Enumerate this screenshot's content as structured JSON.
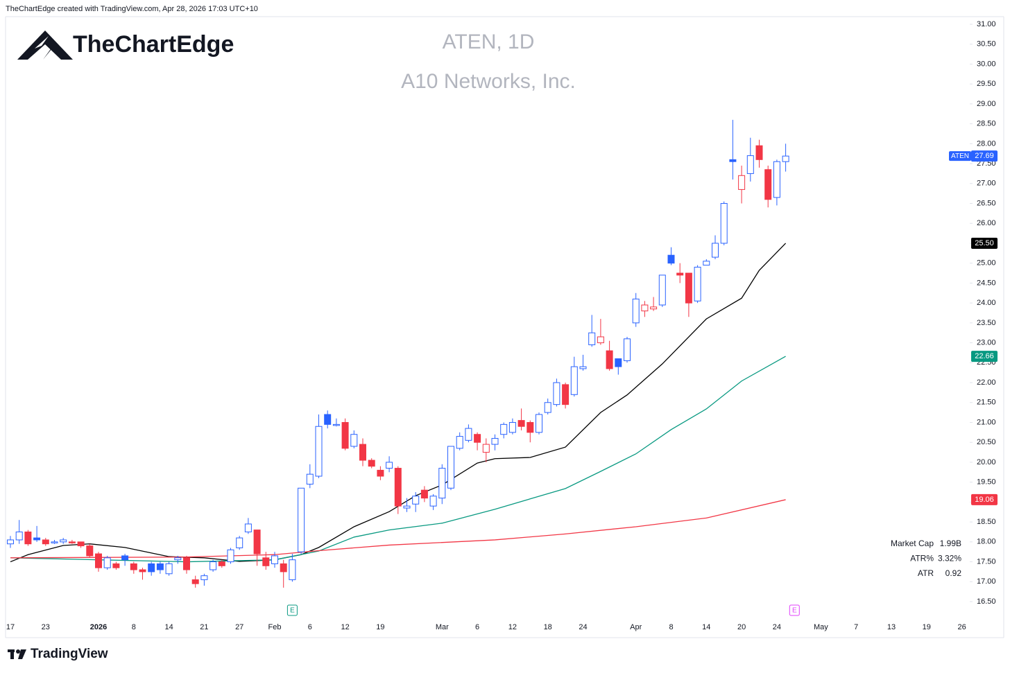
{
  "header": "TheChartEdge created with TradingView.com, Apr 28, 2026 17:03 UTC+10",
  "brand": "TheChartEdge",
  "footer": "TradingView",
  "chart_data": {
    "type": "candlestick",
    "title": "ATEN, 1D",
    "subtitle": "A10 Networks, Inc.",
    "symbol": "ATEN",
    "up_color": "#2962ff",
    "down_color": "#f23645",
    "grid": false,
    "categories": [
      "17",
      null,
      null,
      null,
      "23",
      null,
      null,
      null,
      null,
      null,
      "2026",
      null,
      null,
      null,
      "8",
      null,
      null,
      null,
      "14",
      null,
      null,
      null,
      "21",
      null,
      null,
      null,
      "27",
      null,
      null,
      null,
      "Feb",
      null,
      null,
      null,
      "6",
      null,
      null,
      null,
      "12",
      null,
      null,
      null,
      "19",
      null,
      null,
      null,
      null,
      null,
      null,
      "Mar",
      null,
      null,
      null,
      "6",
      null,
      null,
      null,
      "12",
      null,
      null,
      null,
      "18",
      null,
      null,
      null,
      "24",
      null,
      null,
      null,
      null,
      null,
      "Apr",
      null,
      null,
      null,
      "8",
      null,
      null,
      null,
      "14",
      null,
      null,
      null,
      "20",
      null,
      null,
      null,
      "24",
      null,
      null,
      null,
      null,
      "May",
      null,
      null,
      null,
      "7",
      null,
      null,
      null,
      "13",
      null,
      null,
      null,
      "19",
      null,
      null,
      null,
      "26"
    ],
    "open": [
      17.95,
      18.05,
      18.25,
      18.1,
      18.05,
      17.98,
      18.0,
      18.0,
      18.0,
      17.9,
      17.7,
      17.35,
      17.45,
      17.65,
      17.45,
      17.3,
      17.45,
      17.45,
      17.2,
      17.55,
      17.6,
      17.05,
      17.05,
      17.3,
      17.5,
      17.5,
      17.85,
      18.25,
      18.3,
      17.6,
      17.45,
      17.45,
      17.05,
      17.75,
      19.45,
      19.65,
      21.2,
      20.95,
      21.0,
      20.4,
      20.45,
      20.05,
      19.8,
      19.85,
      19.85,
      18.85,
      18.95,
      19.3,
      18.9,
      19.1,
      19.35,
      20.35,
      20.55,
      20.7,
      20.25,
      20.45,
      20.7,
      20.75,
      21.05,
      21.0,
      20.75,
      21.25,
      21.45,
      21.95,
      21.7,
      22.35,
      22.95,
      23.0,
      22.8,
      22.6,
      22.55,
      23.5,
      23.8,
      23.85,
      23.95,
      25.2,
      24.75,
      24.75,
      24.05,
      24.95,
      25.15,
      25.5,
      27.6,
      26.85,
      27.25,
      27.95,
      27.35,
      26.65,
      27.55,
      null,
      null,
      null,
      null,
      null,
      null,
      null,
      null,
      null,
      null,
      null,
      null,
      null,
      null,
      null,
      null,
      null,
      null,
      null,
      null
    ],
    "high": [
      18.15,
      18.55,
      18.3,
      18.4,
      18.1,
      18.05,
      18.1,
      18.05,
      18.0,
      17.95,
      17.75,
      17.65,
      17.5,
      17.7,
      17.5,
      17.35,
      17.5,
      17.5,
      17.5,
      17.65,
      17.65,
      17.15,
      17.2,
      17.55,
      17.55,
      17.85,
      18.15,
      18.6,
      18.3,
      17.75,
      17.75,
      17.55,
      17.7,
      19.35,
      19.95,
      21.2,
      21.3,
      21.1,
      21.1,
      20.8,
      20.6,
      20.1,
      19.9,
      20.15,
      19.9,
      19.1,
      19.25,
      19.4,
      19.2,
      19.95,
      20.4,
      20.75,
      20.95,
      20.75,
      20.6,
      20.7,
      21.0,
      21.1,
      21.35,
      21.05,
      21.25,
      21.6,
      22.1,
      22.0,
      22.65,
      22.7,
      23.7,
      23.6,
      23.05,
      22.6,
      23.15,
      24.25,
      24.05,
      24.15,
      24.7,
      25.4,
      25.0,
      24.75,
      24.95,
      25.1,
      25.7,
      26.55,
      28.6,
      27.45,
      28.15,
      28.1,
      27.45,
      27.6,
      28.0,
      null,
      null,
      null,
      null,
      null,
      null,
      null,
      null,
      null,
      null,
      null,
      null,
      null,
      null,
      null,
      null,
      null,
      null,
      null,
      null
    ],
    "low": [
      17.85,
      17.95,
      17.9,
      18.0,
      17.9,
      17.95,
      17.95,
      17.95,
      17.85,
      17.6,
      17.25,
      17.3,
      17.3,
      17.4,
      17.2,
      17.05,
      17.15,
      17.2,
      17.15,
      17.45,
      17.2,
      16.85,
      16.9,
      17.25,
      17.35,
      17.45,
      17.8,
      18.2,
      17.4,
      17.3,
      17.35,
      16.85,
      17.0,
      17.7,
      19.35,
      19.6,
      20.85,
      20.9,
      20.3,
      20.35,
      19.9,
      19.85,
      19.55,
      19.75,
      18.7,
      18.75,
      18.75,
      19.0,
      18.8,
      18.95,
      19.3,
      20.3,
      20.5,
      20.3,
      20.0,
      20.3,
      20.6,
      20.7,
      20.8,
      20.5,
      20.7,
      21.2,
      21.4,
      21.35,
      21.65,
      22.3,
      22.9,
      22.95,
      22.3,
      22.2,
      22.5,
      23.4,
      23.65,
      23.8,
      23.9,
      24.95,
      24.5,
      23.65,
      24.0,
      24.95,
      25.1,
      25.45,
      27.1,
      26.5,
      27.05,
      27.4,
      26.4,
      26.45,
      27.3,
      null,
      null,
      null,
      null,
      null,
      null,
      null,
      null,
      null,
      null,
      null,
      null,
      null,
      null,
      null,
      null,
      null,
      null,
      null,
      null
    ],
    "close": [
      18.05,
      18.25,
      17.95,
      18.05,
      17.95,
      18.0,
      18.05,
      17.98,
      17.9,
      17.65,
      17.35,
      17.6,
      17.35,
      17.55,
      17.3,
      17.25,
      17.25,
      17.3,
      17.45,
      17.6,
      17.3,
      16.95,
      17.15,
      17.5,
      17.4,
      17.8,
      18.1,
      18.45,
      17.7,
      17.4,
      17.65,
      17.25,
      17.55,
      19.35,
      19.7,
      20.9,
      20.95,
      20.95,
      20.35,
      20.7,
      20.05,
      19.9,
      19.65,
      20.0,
      18.9,
      18.9,
      19.15,
      19.1,
      19.15,
      19.85,
      20.4,
      20.65,
      20.85,
      20.5,
      20.45,
      20.6,
      20.95,
      21.0,
      20.9,
      20.75,
      21.2,
      21.5,
      22.0,
      21.45,
      22.4,
      22.4,
      23.25,
      23.15,
      22.35,
      22.4,
      23.1,
      24.1,
      23.95,
      23.9,
      24.7,
      25.0,
      24.7,
      24.0,
      24.9,
      25.05,
      25.5,
      26.5,
      27.55,
      27.2,
      27.7,
      27.6,
      26.6,
      27.55,
      27.69,
      null,
      null,
      null,
      null,
      null,
      null,
      null,
      null,
      null,
      null,
      null,
      null,
      null,
      null,
      null,
      null,
      null,
      null,
      null,
      null
    ],
    "last_label": "27.69",
    "series": [
      {
        "color": "#000000",
        "last_label": "25.50",
        "x": [
          0,
          2,
          6,
          9,
          13,
          18,
          22,
          26,
          30,
          33,
          35,
          39,
          43,
          46,
          49,
          53,
          55,
          59,
          63,
          67,
          70,
          74,
          79,
          83,
          85,
          88
        ],
        "values": [
          17.5,
          17.68,
          17.91,
          17.95,
          17.86,
          17.63,
          17.6,
          17.51,
          17.55,
          17.68,
          17.86,
          18.38,
          18.76,
          19.16,
          19.43,
          19.98,
          20.09,
          20.12,
          20.38,
          21.25,
          21.69,
          22.47,
          23.6,
          24.12,
          24.82,
          25.5
        ]
      },
      {
        "color": "#089981",
        "last_label": "22.66",
        "x": [
          0,
          10,
          20,
          30,
          35,
          39,
          43,
          49,
          55,
          59,
          63,
          67,
          71,
          75,
          79,
          83,
          88
        ],
        "values": [
          17.6,
          17.55,
          17.5,
          17.55,
          17.77,
          18.12,
          18.3,
          18.47,
          18.82,
          19.08,
          19.34,
          19.77,
          20.21,
          20.82,
          21.34,
          22.04,
          22.66
        ]
      },
      {
        "color": "#f23645",
        "last_label": "19.06",
        "x": [
          0,
          20,
          30,
          35,
          43,
          55,
          63,
          71,
          79,
          88
        ],
        "values": [
          17.6,
          17.62,
          17.68,
          17.78,
          17.92,
          18.05,
          18.2,
          18.38,
          18.6,
          19.06
        ]
      }
    ],
    "ylim": [
      16.5,
      31
    ],
    "yticks": [
      {
        "value": 16.5,
        "label": "16.50"
      },
      {
        "value": 17,
        "label": "17.00"
      },
      {
        "value": 17.5,
        "label": "17.50"
      },
      {
        "value": 18,
        "label": "18.00"
      },
      {
        "value": 18.5,
        "label": "18.50"
      },
      {
        "value": 19,
        "label": "19.00"
      },
      {
        "value": 19.5,
        "label": "19.50"
      },
      {
        "value": 20,
        "label": "20.00"
      },
      {
        "value": 20.5,
        "label": "20.50"
      },
      {
        "value": 21,
        "label": "21.00"
      },
      {
        "value": 21.5,
        "label": "21.50"
      },
      {
        "value": 22,
        "label": "22.00"
      },
      {
        "value": 22.5,
        "label": "22.50"
      },
      {
        "value": 23,
        "label": "23.00"
      },
      {
        "value": 23.5,
        "label": "23.50"
      },
      {
        "value": 24,
        "label": "24.00"
      },
      {
        "value": 24.5,
        "label": "24.50"
      },
      {
        "value": 25,
        "label": "25.00"
      },
      {
        "value": 25.5,
        "label": "25.50"
      },
      {
        "value": 26,
        "label": "26.00"
      },
      {
        "value": 26.5,
        "label": "26.50"
      },
      {
        "value": 27,
        "label": "27.00"
      },
      {
        "value": 27.5,
        "label": "27.50"
      },
      {
        "value": 28,
        "label": "28.00"
      },
      {
        "value": 28.5,
        "label": "28.50"
      },
      {
        "value": 29,
        "label": "29.00"
      },
      {
        "value": 29.5,
        "label": "29.50"
      },
      {
        "value": 30,
        "label": "30.00"
      },
      {
        "value": 30.5,
        "label": "30.50"
      },
      {
        "value": 31,
        "label": "31.00"
      }
    ],
    "earnings": [
      {
        "at": 32,
        "label": "E",
        "color": "#089981"
      },
      {
        "at": 89,
        "label": "E",
        "color": "#e040fb"
      }
    ],
    "stats": [
      {
        "label": "Market Cap",
        "value": "1.99B"
      },
      {
        "label": "ATR%",
        "value": "3.32%"
      },
      {
        "label": "ATR",
        "value": "0.92"
      }
    ]
  }
}
